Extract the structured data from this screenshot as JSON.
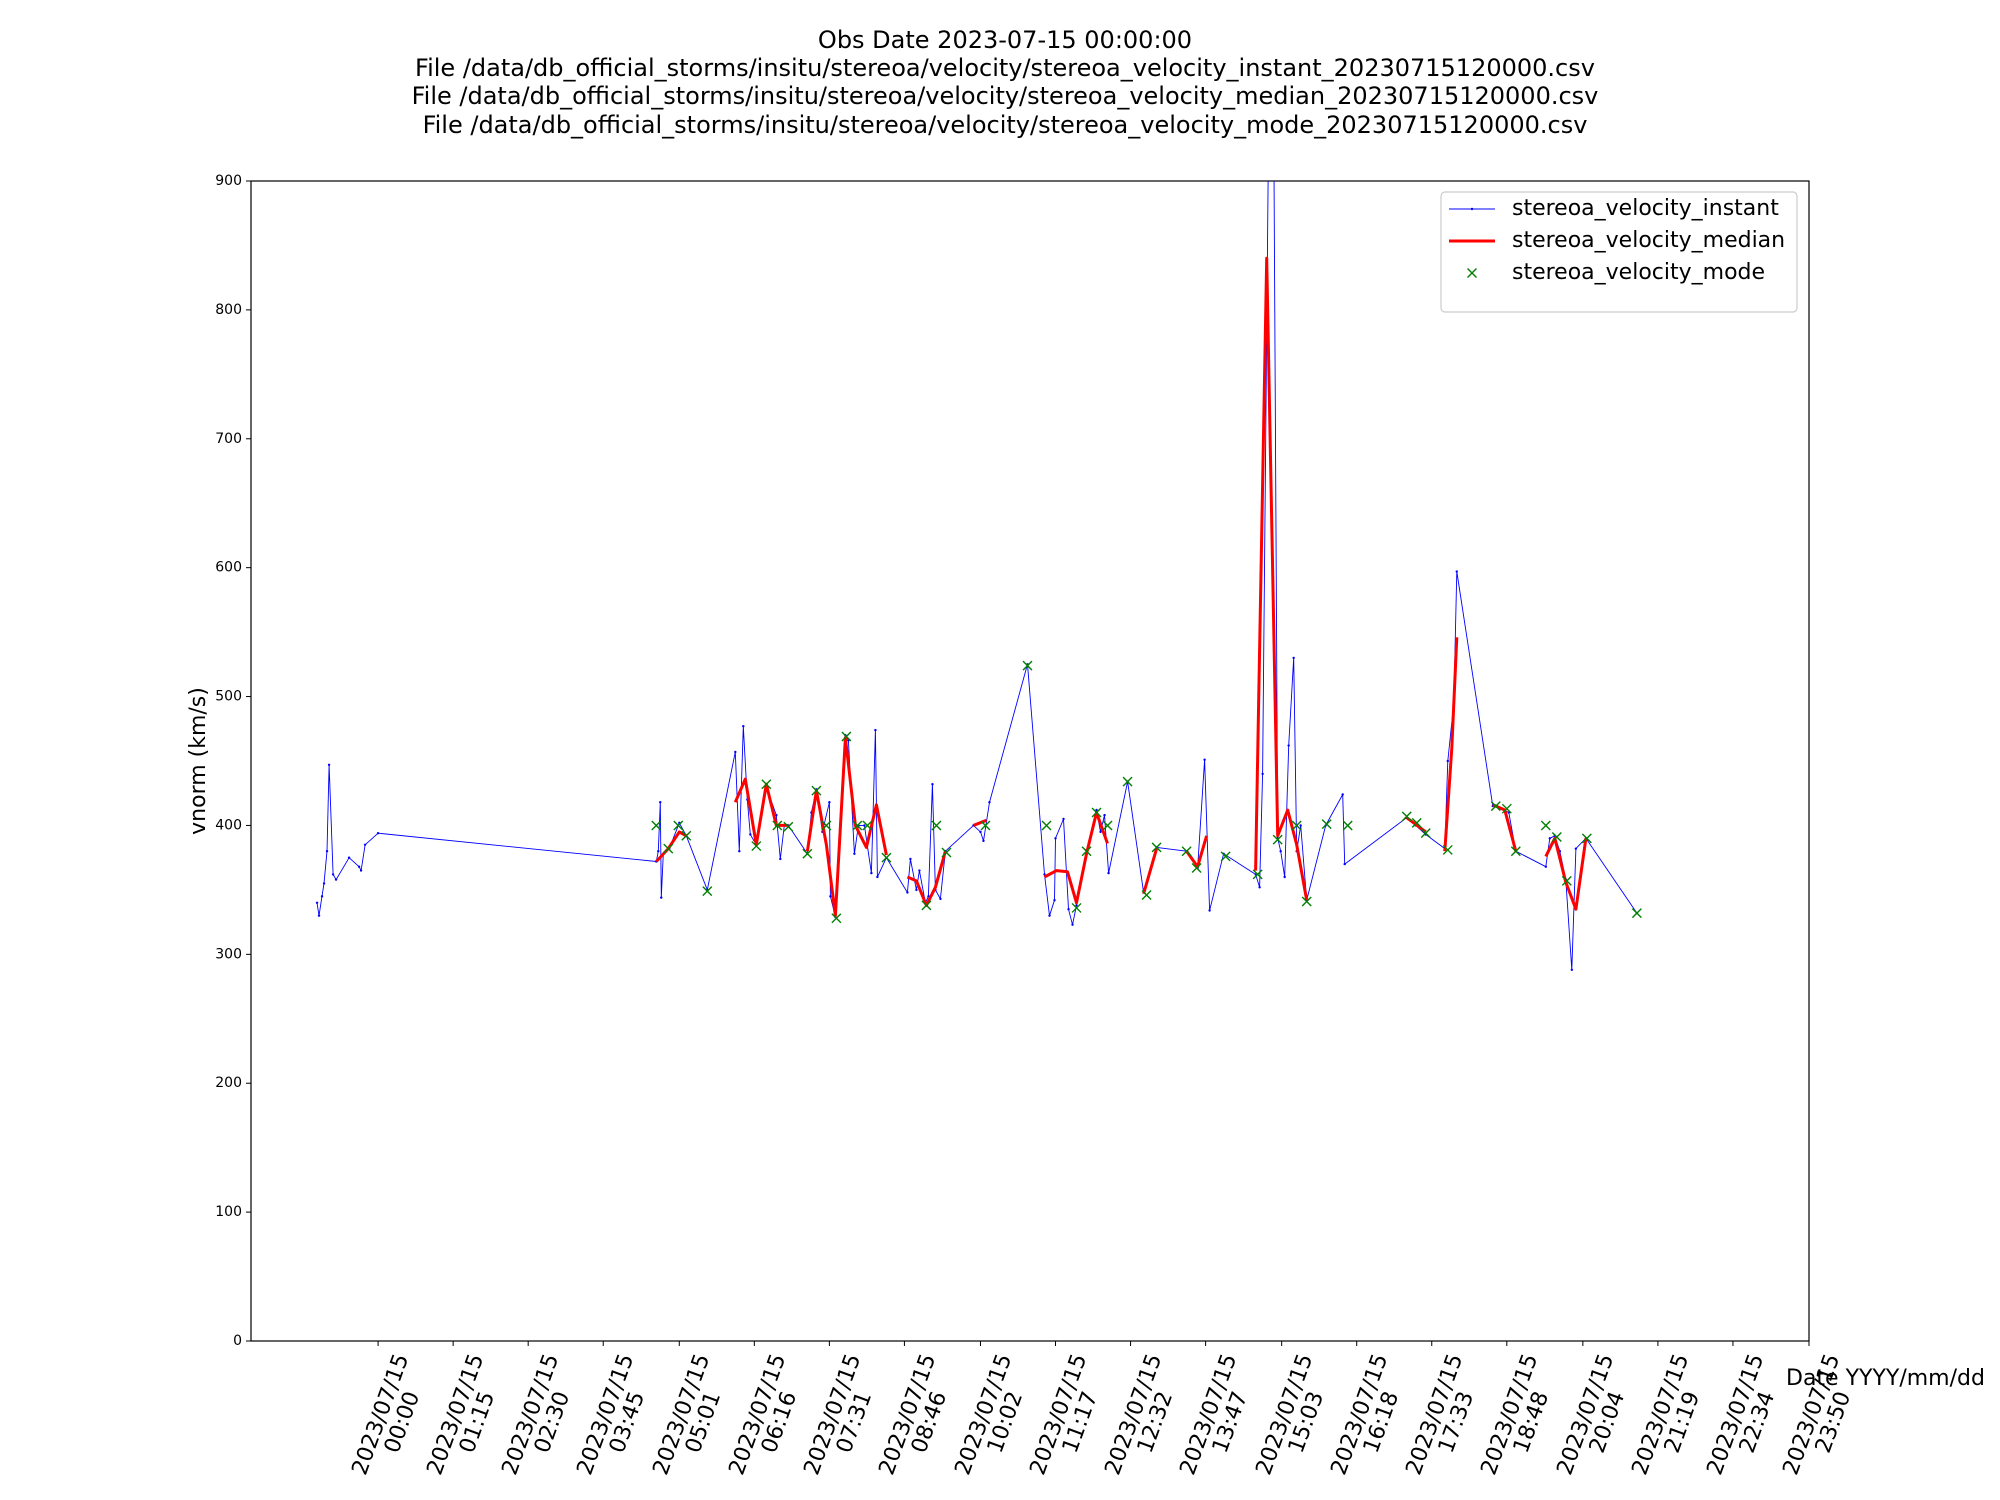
{
  "chart_data": {
    "type": "line",
    "title": [
      "Obs Date 2023-07-15 00:00:00",
      "File /data/db_official_storms/insitu/stereoa/velocity/stereoa_velocity_instant_20230715120000.csv",
      "File /data/db_official_storms/insitu/stereoa/velocity/stereoa_velocity_median_20230715120000.csv",
      "File /data/db_official_storms/insitu/stereoa/velocity/stereoa_velocity_mode_20230715120000.csv"
    ],
    "xlabel": "Date YYYY/mm/dd",
    "ylabel": "vnorm (km/s)",
    "xlim": [
      -127,
      1430
    ],
    "ylim": [
      0,
      900
    ],
    "xticks": [
      {
        "value": 0,
        "label": "2023/07/15\n00:00"
      },
      {
        "value": 75,
        "label": "2023/07/15\n01:15"
      },
      {
        "value": 150,
        "label": "2023/07/15\n02:30"
      },
      {
        "value": 225,
        "label": "2023/07/15\n03:45"
      },
      {
        "value": 301,
        "label": "2023/07/15\n05:01"
      },
      {
        "value": 376,
        "label": "2023/07/15\n06:16"
      },
      {
        "value": 451,
        "label": "2023/07/15\n07:31"
      },
      {
        "value": 526,
        "label": "2023/07/15\n08:46"
      },
      {
        "value": 602,
        "label": "2023/07/15\n10:02"
      },
      {
        "value": 677,
        "label": "2023/07/15\n11:17"
      },
      {
        "value": 752,
        "label": "2023/07/15\n12:32"
      },
      {
        "value": 827,
        "label": "2023/07/15\n13:47"
      },
      {
        "value": 903,
        "label": "2023/07/15\n15:03"
      },
      {
        "value": 978,
        "label": "2023/07/15\n16:18"
      },
      {
        "value": 1053,
        "label": "2023/07/15\n17:33"
      },
      {
        "value": 1128,
        "label": "2023/07/15\n18:48"
      },
      {
        "value": 1204,
        "label": "2023/07/15\n20:04"
      },
      {
        "value": 1279,
        "label": "2023/07/15\n21:19"
      },
      {
        "value": 1354,
        "label": "2023/07/15\n22:34"
      },
      {
        "value": 1430,
        "label": "2023/07/15\n23:50"
      }
    ],
    "yticks": [
      0,
      100,
      200,
      300,
      400,
      500,
      600,
      700,
      800,
      900
    ],
    "grid": false,
    "legend": "upper right",
    "series": [
      {
        "name": "stereoa_velocity_instant",
        "color": "#0000ff",
        "linestyle": "solid",
        "marker": ".",
        "x": [
          -61,
          -59,
          -56,
          -54,
          -51,
          -49,
          -45,
          -42,
          -29,
          -19,
          -17,
          -13,
          0,
          278,
          280,
          282,
          283,
          285,
          291,
          301,
          308,
          329,
          357,
          361,
          365,
          369,
          372,
          378,
          388,
          398,
          402,
          406,
          410,
          429,
          433,
          438,
          444,
          451,
          452,
          457,
          461,
          467,
          470,
          476,
          480,
          486,
          493,
          497,
          499,
          508,
          529,
          532,
          538,
          541,
          547,
          550,
          554,
          557,
          562,
          567,
          595,
          602,
          605,
          611,
          649,
          666,
          671,
          676,
          677,
          685,
          690,
          694,
          698,
          708,
          718,
          722,
          726,
          730,
          749,
          765,
          778,
          808,
          813,
          819,
          826,
          831,
          845,
          877,
          881,
          884,
          890,
          895,
          899,
          902,
          906,
          910,
          915,
          918,
          922,
          928,
          947,
          964,
          966,
          1028,
          1037,
          1047,
          1066,
          1069,
          1075,
          1078,
          1114,
          1123,
          1130,
          1137,
          1167,
          1171,
          1176,
          1181,
          1187,
          1193,
          1197,
          1207,
          1258
        ],
        "values": [
          340,
          330,
          345,
          355,
          380,
          447,
          362,
          358,
          375,
          368,
          365,
          385,
          394,
          372,
          380,
          418,
          344,
          378,
          382,
          402,
          392,
          350,
          457,
          380,
          477,
          420,
          393,
          385,
          430,
          408,
          374,
          400,
          400,
          378,
          410,
          428,
          395,
          418,
          345,
          329,
          382,
          470,
          466,
          378,
          400,
          400,
          363,
          474,
          360,
          375,
          348,
          374,
          350,
          365,
          340,
          345,
          432,
          350,
          343,
          380,
          400,
          395,
          388,
          418,
          525,
          362,
          330,
          342,
          390,
          405,
          335,
          323,
          338,
          381,
          412,
          395,
          408,
          363,
          434,
          348,
          383,
          380,
          375,
          367,
          451,
          334,
          378,
          362,
          352,
          440,
          950,
          950,
          390,
          380,
          360,
          462,
          530,
          380,
          400,
          342,
          400,
          424,
          370,
          406,
          400,
          393,
          382,
          450,
          495,
          597,
          415,
          413,
          410,
          380,
          368,
          390,
          392,
          380,
          358,
          288,
          382,
          390,
          332
        ]
      },
      {
        "name": "stereoa_velocity_median",
        "color": "#ff0000",
        "linestyle": "solid",
        "marker": "none",
        "x": [
          278,
          290,
          301,
          308,
          null,
          357,
          367,
          378,
          388,
          398,
          410,
          null,
          429,
          438,
          448,
          457,
          467,
          477,
          488,
          498,
          508,
          null,
          529,
          538,
          548,
          557,
          567,
          null,
          595,
          608,
          null,
          666,
          678,
          689,
          698,
          708,
          718,
          729,
          null,
          765,
          778,
          null,
          808,
          819,
          828,
          null,
          877,
          888,
          899,
          909,
          918,
          928,
          null,
          1028,
          1047,
          null,
          1066,
          1073,
          1078,
          null,
          1114,
          1126,
          1137,
          null,
          1167,
          1176,
          1187,
          1197,
          1207
        ],
        "values": [
          372,
          382,
          395,
          392,
          null,
          418,
          436,
          385,
          432,
          400,
          400,
          null,
          380,
          427,
          385,
          330,
          468,
          400,
          383,
          416,
          377,
          null,
          360,
          357,
          338,
          352,
          380,
          null,
          400,
          404,
          null,
          360,
          365,
          364,
          340,
          378,
          410,
          386,
          null,
          347,
          382,
          null,
          380,
          368,
          392,
          null,
          365,
          840,
          392,
          412,
          385,
          342,
          null,
          406,
          395,
          null,
          380,
          460,
          546,
          null,
          416,
          412,
          380,
          null,
          376,
          390,
          356,
          335,
          390
        ]
      },
      {
        "name": "stereoa_velocity_mode",
        "color": "#008000",
        "linestyle": "none",
        "marker": "x",
        "x": [
          278,
          290,
          300,
          308,
          329,
          378,
          388,
          399,
          410,
          429,
          438,
          448,
          458,
          468,
          479,
          489,
          508,
          548,
          558,
          568,
          607,
          649,
          668,
          698,
          708,
          718,
          729,
          749,
          768,
          778,
          808,
          818,
          847,
          879,
          899,
          918,
          928,
          948,
          969,
          1028,
          1038,
          1047,
          1069,
          1117,
          1128,
          1137,
          1167,
          1178,
          1188,
          1208,
          1258
        ],
        "values": [
          400,
          382,
          400,
          392,
          349,
          384,
          432,
          400,
          399,
          378,
          427,
          400,
          328,
          469,
          400,
          400,
          375,
          338,
          400,
          379,
          400,
          524,
          400,
          336,
          380,
          410,
          400,
          434,
          346,
          383,
          380,
          367,
          376,
          362,
          389,
          400,
          341,
          401,
          400,
          407,
          402,
          394,
          381,
          415,
          413,
          380,
          400,
          391,
          357,
          390,
          332
        ]
      }
    ]
  }
}
